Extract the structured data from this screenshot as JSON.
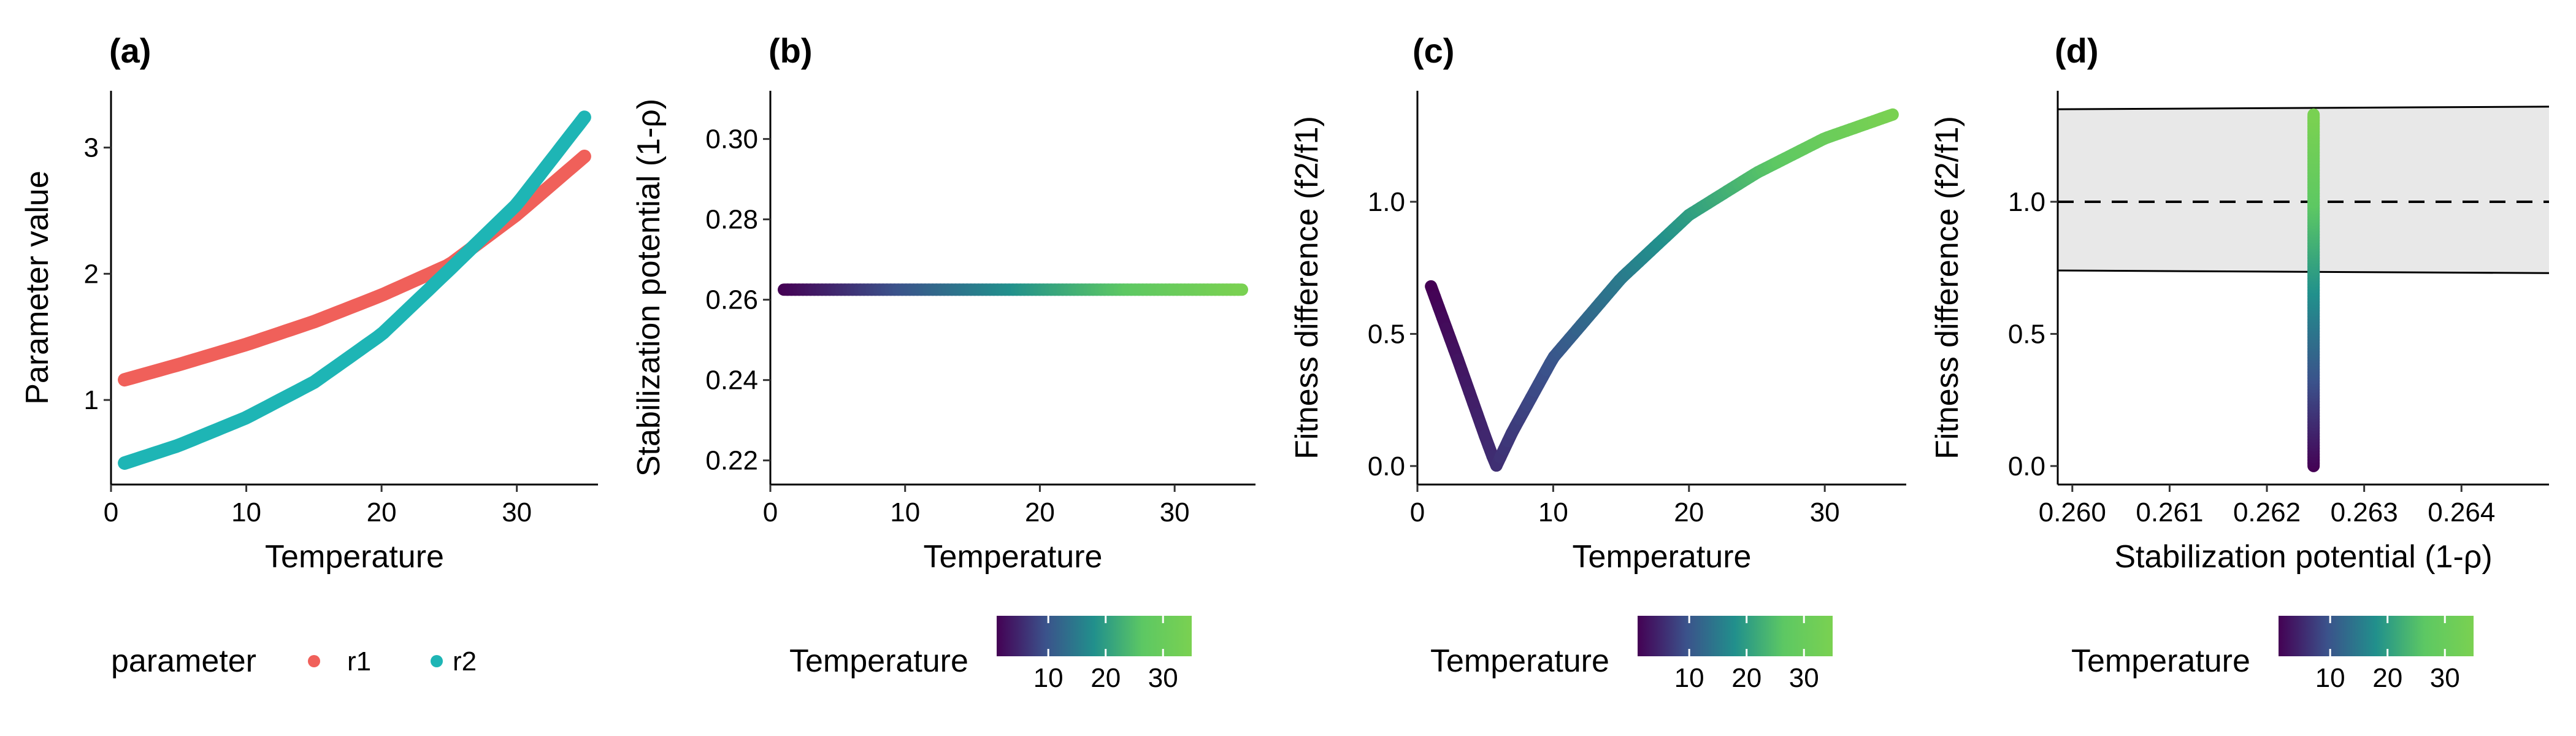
{
  "colors": {
    "r1": "#F0605A",
    "r2": "#1EB5B5",
    "viridis": [
      "#440154",
      "#3B528B",
      "#21908C",
      "#5DC863",
      "#7AD151"
    ],
    "band_fill": "#E8E8E8"
  },
  "chart_data": [
    {
      "panel_label": "(a)",
      "type": "line",
      "xlabel": "Temperature",
      "ylabel": "Parameter value",
      "xlim": [
        0,
        36
      ],
      "ylim": [
        0.33,
        3.45
      ],
      "xticks": [
        "0",
        "10",
        "20",
        "30"
      ],
      "yticks": [
        "1",
        "2",
        "3"
      ],
      "series": [
        {
          "name": "r1",
          "x": [
            1,
            5,
            10,
            15,
            20,
            25,
            30,
            35
          ],
          "y": [
            1.16,
            1.28,
            1.44,
            1.62,
            1.83,
            2.07,
            2.47,
            2.93
          ]
        },
        {
          "name": "r2",
          "x": [
            1,
            5,
            10,
            15,
            20,
            25,
            30,
            35
          ],
          "y": [
            0.5,
            0.64,
            0.86,
            1.14,
            1.52,
            2.03,
            2.55,
            3.24
          ]
        }
      ],
      "legend": {
        "title": "parameter",
        "position": "bottom",
        "entries": [
          "r1",
          "r2"
        ]
      }
    },
    {
      "panel_label": "(b)",
      "type": "line",
      "xlabel": "Temperature",
      "ylabel": "Stabilization potential (1-ρ)",
      "xlim": [
        0,
        36
      ],
      "ylim": [
        0.214,
        0.312
      ],
      "xticks": [
        "0",
        "10",
        "20",
        "30"
      ],
      "yticks": [
        "0.22",
        "0.24",
        "0.26",
        "0.28",
        "0.30"
      ],
      "series": [
        {
          "x": [
            1,
            35
          ],
          "y": [
            0.2625,
            0.2625
          ],
          "color_by": "Temperature"
        }
      ],
      "colorbar": {
        "title": "Temperature",
        "range": [
          1,
          35
        ],
        "ticks": [
          "10",
          "20",
          "30"
        ]
      }
    },
    {
      "panel_label": "(c)",
      "type": "line",
      "xlabel": "Temperature",
      "ylabel": "Fitness difference (f2/f1)",
      "xlim": [
        0,
        36
      ],
      "ylim": [
        -0.07,
        1.42
      ],
      "xticks": [
        "0",
        "10",
        "20",
        "30"
      ],
      "yticks": [
        "0.0",
        "0.5",
        "1.0"
      ],
      "series": [
        {
          "x": [
            1,
            3,
            5,
            5.8,
            7,
            10,
            15,
            20,
            25,
            30,
            35
          ],
          "y": [
            0.68,
            0.4,
            0.11,
            0.0,
            0.13,
            0.41,
            0.71,
            0.95,
            1.11,
            1.24,
            1.33
          ],
          "color_by": "Temperature"
        }
      ],
      "colorbar": {
        "title": "Temperature",
        "range": [
          1,
          35
        ],
        "ticks": [
          "10",
          "20",
          "30"
        ]
      }
    },
    {
      "panel_label": "(d)",
      "type": "scatter",
      "xlabel": "Stabilization potential (1-ρ)",
      "ylabel": "Fitness difference (f2/f1)",
      "xlim": [
        0.25985,
        0.2649
      ],
      "ylim": [
        -0.07,
        1.42
      ],
      "xticks": [
        "0.260",
        "0.261",
        "0.262",
        "0.263",
        "0.264"
      ],
      "yticks": [
        "0.0",
        "0.5",
        "1.0"
      ],
      "coexistence_band": {
        "upper": [
          1.35,
          1.36
        ],
        "lower": [
          0.74,
          0.73
        ],
        "reference_y": 1.0
      },
      "series": [
        {
          "x": [
            0.26248,
            0.26248
          ],
          "y": [
            0.0,
            1.33
          ],
          "color_by": "Temperature"
        }
      ],
      "colorbar": {
        "title": "Temperature",
        "range": [
          1,
          35
        ],
        "ticks": [
          "10",
          "20",
          "30"
        ]
      }
    }
  ]
}
